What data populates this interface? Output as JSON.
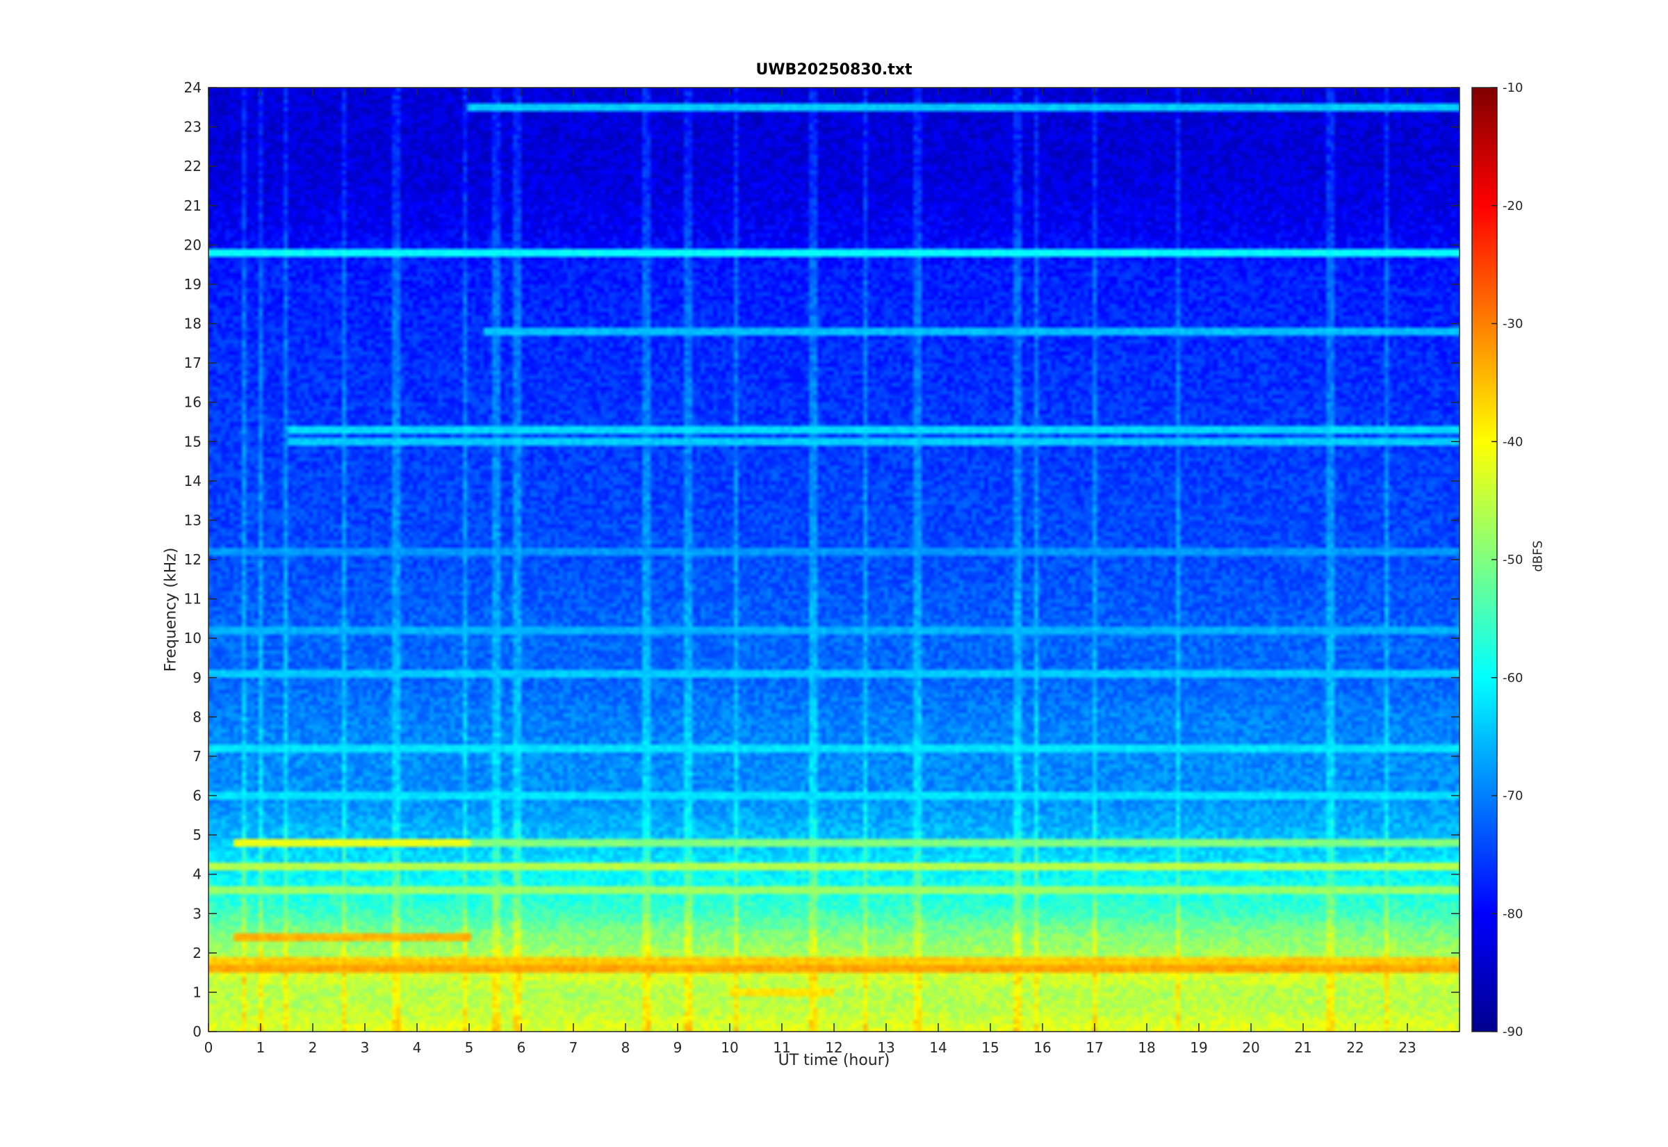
{
  "chart_data": {
    "type": "heatmap",
    "title": "UWB20250830.txt",
    "xlabel": "UT time (hour)",
    "ylabel": "Frequency (kHz)",
    "colorbar_label": "dBFS",
    "xlim": [
      0,
      24
    ],
    "ylim": [
      0,
      24
    ],
    "clim": [
      -90,
      -10
    ],
    "colormap": "jet",
    "x_ticks": [
      "0",
      "1",
      "2",
      "3",
      "4",
      "5",
      "6",
      "7",
      "8",
      "9",
      "10",
      "11",
      "12",
      "13",
      "14",
      "15",
      "16",
      "17",
      "18",
      "19",
      "20",
      "21",
      "22",
      "23"
    ],
    "y_ticks": [
      "0",
      "1",
      "2",
      "3",
      "4",
      "5",
      "6",
      "7",
      "8",
      "9",
      "10",
      "11",
      "12",
      "13",
      "14",
      "15",
      "16",
      "17",
      "18",
      "19",
      "20",
      "21",
      "22",
      "23",
      "24"
    ],
    "colorbar_ticks": [
      "-10",
      "-20",
      "-30",
      "-40",
      "-50",
      "-60",
      "-70",
      "-80",
      "-90"
    ],
    "frequency_profile_dBFS": [
      {
        "f": 0.0,
        "db": -42
      },
      {
        "f": 0.5,
        "db": -45
      },
      {
        "f": 1.0,
        "db": -46
      },
      {
        "f": 1.5,
        "db": -43
      },
      {
        "f": 2.0,
        "db": -47
      },
      {
        "f": 2.5,
        "db": -50
      },
      {
        "f": 3.0,
        "db": -55
      },
      {
        "f": 3.5,
        "db": -58
      },
      {
        "f": 4.0,
        "db": -60
      },
      {
        "f": 4.5,
        "db": -63
      },
      {
        "f": 5.0,
        "db": -65
      },
      {
        "f": 6.0,
        "db": -69
      },
      {
        "f": 7.0,
        "db": -69
      },
      {
        "f": 8.0,
        "db": -70
      },
      {
        "f": 9.0,
        "db": -72
      },
      {
        "f": 10.0,
        "db": -72
      },
      {
        "f": 12.0,
        "db": -74
      },
      {
        "f": 14.0,
        "db": -75
      },
      {
        "f": 16.0,
        "db": -76
      },
      {
        "f": 18.0,
        "db": -77
      },
      {
        "f": 19.5,
        "db": -78
      },
      {
        "f": 20.5,
        "db": -81
      },
      {
        "f": 22.0,
        "db": -83
      },
      {
        "f": 24.0,
        "db": -83
      }
    ],
    "narrowband_lines": [
      {
        "f": 19.8,
        "db": -60,
        "t_start": 0,
        "t_end": 24
      },
      {
        "f": 23.5,
        "db": -64,
        "t_start": 5,
        "t_end": 24
      },
      {
        "f": 17.8,
        "db": -65,
        "t_start": 5.3,
        "t_end": 24
      },
      {
        "f": 15.3,
        "db": -63,
        "t_start": 1.5,
        "t_end": 24
      },
      {
        "f": 15.0,
        "db": -64,
        "t_start": 1.5,
        "t_end": 24
      },
      {
        "f": 12.2,
        "db": -68,
        "t_start": 0,
        "t_end": 24
      },
      {
        "f": 10.2,
        "db": -66,
        "t_start": 0,
        "t_end": 24
      },
      {
        "f": 9.1,
        "db": -64,
        "t_start": 0,
        "t_end": 24
      },
      {
        "f": 7.2,
        "db": -62,
        "t_start": 0,
        "t_end": 24
      },
      {
        "f": 6.0,
        "db": -62,
        "t_start": 0,
        "t_end": 24
      },
      {
        "f": 4.8,
        "db": -42,
        "t_start": 0.5,
        "t_end": 5
      },
      {
        "f": 4.8,
        "db": -50,
        "t_start": 5,
        "t_end": 24
      },
      {
        "f": 4.2,
        "db": -46,
        "t_start": 0,
        "t_end": 24
      },
      {
        "f": 3.6,
        "db": -48,
        "t_start": 0,
        "t_end": 24
      },
      {
        "f": 2.4,
        "db": -34,
        "t_start": 0.5,
        "t_end": 5
      },
      {
        "f": 1.8,
        "db": -36,
        "t_start": 0,
        "t_end": 24
      },
      {
        "f": 1.6,
        "db": -33,
        "t_start": 0,
        "t_end": 24
      },
      {
        "f": 1.0,
        "db": -38,
        "t_start": 10,
        "t_end": 12
      }
    ],
    "broadband_events_hour": [
      0.7,
      1.0,
      1.5,
      2.6,
      3.6,
      4.9,
      5.5,
      5.9,
      8.4,
      9.2,
      10.1,
      11.6,
      12.6,
      13.6,
      15.5,
      15.9,
      17.0,
      18.6,
      21.5,
      22.6
    ]
  }
}
